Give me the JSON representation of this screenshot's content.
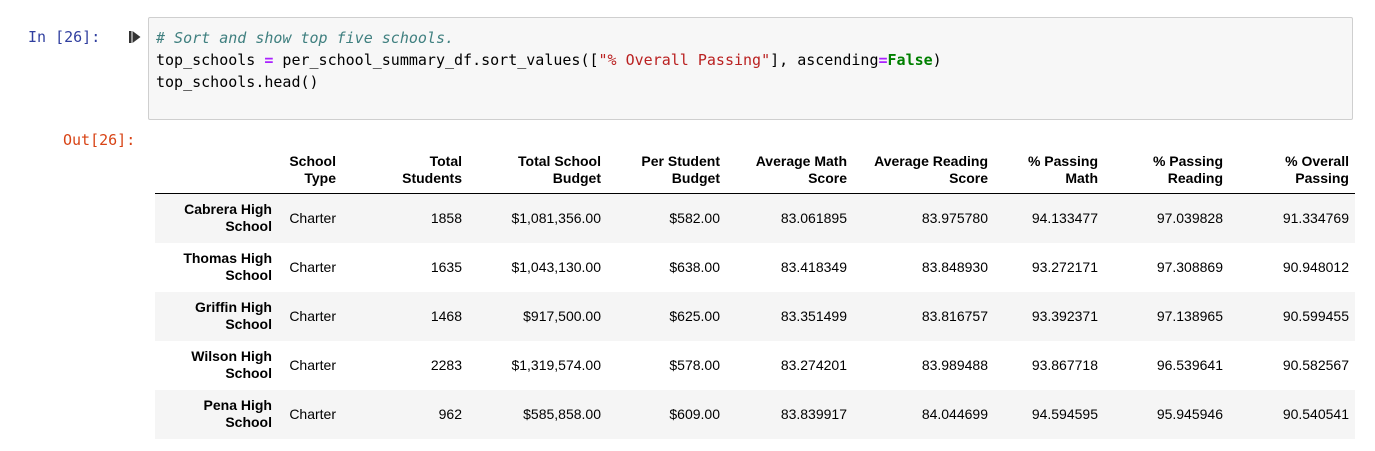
{
  "prompts": {
    "in": "In [26]:",
    "out": "Out[26]:"
  },
  "code": {
    "line1_comment": "# Sort and show top five schools.",
    "line2_part1": "top_schools ",
    "line2_op": "=",
    "line2_part2": " per_school_summary_df.sort_values([",
    "line2_string": "\"% Overall Passing\"",
    "line2_part3": "], ascending",
    "line2_op2": "=",
    "line2_kw": "False",
    "line2_part4": ")",
    "line3": "top_schools.head()"
  },
  "table": {
    "headers": [
      {
        "line1": "School",
        "line2": "Type"
      },
      {
        "line1": "Total",
        "line2": "Students"
      },
      {
        "line1": "Total School",
        "line2": "Budget"
      },
      {
        "line1": "Per Student",
        "line2": "Budget"
      },
      {
        "line1": "Average Math",
        "line2": "Score"
      },
      {
        "line1": "Average Reading",
        "line2": "Score"
      },
      {
        "line1": "% Passing",
        "line2": "Math"
      },
      {
        "line1": "% Passing",
        "line2": "Reading"
      },
      {
        "line1": "% Overall",
        "line2": "Passing"
      }
    ],
    "rows": [
      {
        "index_line1": "Cabrera High",
        "index_line2": "School",
        "cells": [
          "Charter",
          "1858",
          "$1,081,356.00",
          "$582.00",
          "83.061895",
          "83.975780",
          "94.133477",
          "97.039828",
          "91.334769"
        ]
      },
      {
        "index_line1": "Thomas High",
        "index_line2": "School",
        "cells": [
          "Charter",
          "1635",
          "$1,043,130.00",
          "$638.00",
          "83.418349",
          "83.848930",
          "93.272171",
          "97.308869",
          "90.948012"
        ]
      },
      {
        "index_line1": "Griffin High",
        "index_line2": "School",
        "cells": [
          "Charter",
          "1468",
          "$917,500.00",
          "$625.00",
          "83.351499",
          "83.816757",
          "93.392371",
          "97.138965",
          "90.599455"
        ]
      },
      {
        "index_line1": "Wilson High",
        "index_line2": "School",
        "cells": [
          "Charter",
          "2283",
          "$1,319,574.00",
          "$578.00",
          "83.274201",
          "83.989488",
          "93.867718",
          "96.539641",
          "90.582567"
        ]
      },
      {
        "index_line1": "Pena High",
        "index_line2": "School",
        "cells": [
          "Charter",
          "962",
          "$585,858.00",
          "$609.00",
          "83.839917",
          "84.044699",
          "94.594595",
          "95.945946",
          "90.540541"
        ]
      }
    ]
  }
}
